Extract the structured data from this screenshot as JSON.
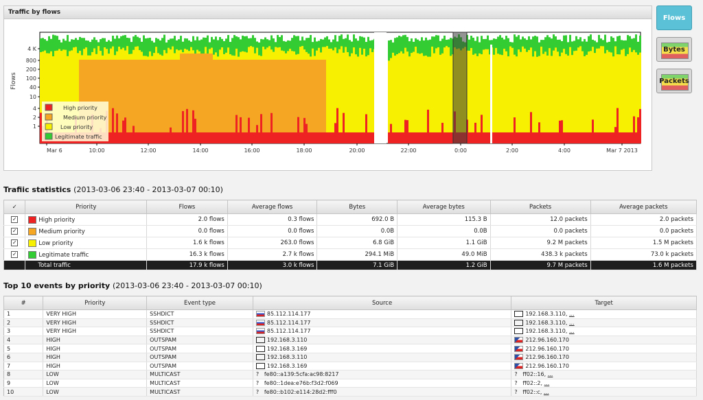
{
  "graph": {
    "title": "Traffic by flows",
    "ylabel": "Flows",
    "yticks": [
      "1",
      "2",
      "4",
      "10",
      "40",
      "100",
      "200",
      "800",
      "4 K"
    ],
    "xticks": [
      "Mar 6",
      "10:00",
      "12:00",
      "14:00",
      "16:00",
      "18:00",
      "20:00",
      "22:00",
      "0:00",
      "2:00",
      "4:00",
      "Mar 7 2013"
    ],
    "legend": [
      {
        "label": "High priority",
        "color": "#ee2222"
      },
      {
        "label": "Medium priority",
        "color": "#f5a623"
      },
      {
        "label": "Low priority",
        "color": "#f7f000"
      },
      {
        "label": "Legitimate traffic",
        "color": "#33cc33"
      }
    ]
  },
  "chart_data": {
    "type": "area",
    "title": "Traffic by flows",
    "ylabel": "Flows",
    "yscale": "log",
    "xticks": [
      "Mar 6",
      "10:00",
      "12:00",
      "14:00",
      "16:00",
      "18:00",
      "20:00",
      "22:00",
      "0:00",
      "2:00",
      "4:00",
      "Mar 7 2013"
    ],
    "series": [
      {
        "name": "High priority",
        "approx_level": "1"
      },
      {
        "name": "Medium priority",
        "approx_level": "200"
      },
      {
        "name": "Low priority",
        "approx_level": "800"
      },
      {
        "name": "Legitimate traffic",
        "approx_level": "4 K"
      }
    ]
  },
  "side_buttons": [
    {
      "label": "Flows",
      "active": true
    },
    {
      "label": "Bytes",
      "active": false
    },
    {
      "label": "Packets",
      "active": false
    }
  ],
  "stats": {
    "title": "Trafiic statistics",
    "range": "(2013-03-06 23:40 - 2013-03-07 00:10)",
    "headers": [
      "✓",
      "Priority",
      "Flows",
      "Average flows",
      "Bytes",
      "Average bytes",
      "Packets",
      "Average packets"
    ],
    "rows": [
      {
        "color": "#ee2222",
        "priority": "High priority",
        "flows": "2.0 flows",
        "avg_flows": "0.3 flows",
        "bytes": "692.0 B",
        "avg_bytes": "115.3 B",
        "packets": "12.0 packets",
        "avg_packets": "2.0 packets"
      },
      {
        "color": "#f5a623",
        "priority": "Medium priority",
        "flows": "0.0 flows",
        "avg_flows": "0.0 flows",
        "bytes": "0.0B",
        "avg_bytes": "0.0B",
        "packets": "0.0 packets",
        "avg_packets": "0.0 packets"
      },
      {
        "color": "#f7f000",
        "priority": "Low priority",
        "flows": "1.6 k flows",
        "avg_flows": "263.0 flows",
        "bytes": "6.8 GiB",
        "avg_bytes": "1.1 GiB",
        "packets": "9.2 M packets",
        "avg_packets": "1.5 M packets"
      },
      {
        "color": "#33cc33",
        "priority": "Legitimate traffic",
        "flows": "16.3 k flows",
        "avg_flows": "2.7 k flows",
        "bytes": "294.1 MiB",
        "avg_bytes": "49.0 MiB",
        "packets": "438.3 k packets",
        "avg_packets": "73.0 k packets"
      }
    ],
    "total": {
      "label": "Total traffic",
      "flows": "17.9 k flows",
      "avg_flows": "3.0 k flows",
      "bytes": "7.1 GiB",
      "avg_bytes": "1.2 GiB",
      "packets": "9.7 M packets",
      "avg_packets": "1.6 M packets"
    }
  },
  "events": {
    "title": "Top 10 events by priority",
    "range": "(2013-03-06 23:40 - 2013-03-07 00:10)",
    "headers": [
      "#",
      "Priority",
      "Event type",
      "Source",
      "Target"
    ],
    "more": "...",
    "rows": [
      {
        "n": "1",
        "priority": "VERY HIGH",
        "type": "SSHDICT",
        "src_icon": "flag-ru",
        "source": "85.112.114.177",
        "tgt_icon": "host",
        "target": "192.168.3.110,"
      },
      {
        "n": "2",
        "priority": "VERY HIGH",
        "type": "SSHDICT",
        "src_icon": "flag-ru",
        "source": "85.112.114.177",
        "tgt_icon": "host",
        "target": "192.168.3.110,"
      },
      {
        "n": "3",
        "priority": "VERY HIGH",
        "type": "SSHDICT",
        "src_icon": "flag-ru",
        "source": "85.112.114.177",
        "tgt_icon": "host",
        "target": "192.168.3.110,"
      },
      {
        "n": "4",
        "priority": "HIGH",
        "type": "OUTSPAM",
        "src_icon": "host",
        "source": "192.168.3.110",
        "tgt_icon": "flag-cz",
        "target": "212.96.160.170"
      },
      {
        "n": "5",
        "priority": "HIGH",
        "type": "OUTSPAM",
        "src_icon": "host",
        "source": "192.168.3.169",
        "tgt_icon": "flag-cz",
        "target": "212.96.160.170"
      },
      {
        "n": "6",
        "priority": "HIGH",
        "type": "OUTSPAM",
        "src_icon": "host",
        "source": "192.168.3.110",
        "tgt_icon": "flag-cz",
        "target": "212.96.160.170"
      },
      {
        "n": "7",
        "priority": "HIGH",
        "type": "OUTSPAM",
        "src_icon": "host",
        "source": "192.168.3.169",
        "tgt_icon": "flag-cz",
        "target": "212.96.160.170"
      },
      {
        "n": "8",
        "priority": "LOW",
        "type": "MULTICAST",
        "src_icon": "unknown",
        "source": "fe80::a139:5cfa:ac98:8217",
        "tgt_icon": "unknown",
        "target": "ff02::16,"
      },
      {
        "n": "9",
        "priority": "LOW",
        "type": "MULTICAST",
        "src_icon": "unknown",
        "source": "fe80::1dea:e76b:f3d2:f069",
        "tgt_icon": "unknown",
        "target": "ff02::2,"
      },
      {
        "n": "10",
        "priority": "LOW",
        "type": "MULTICAST",
        "src_icon": "unknown",
        "source": "fe80::b102:e114:28d2:fff0",
        "tgt_icon": "unknown",
        "target": "ff02::c,"
      }
    ]
  }
}
